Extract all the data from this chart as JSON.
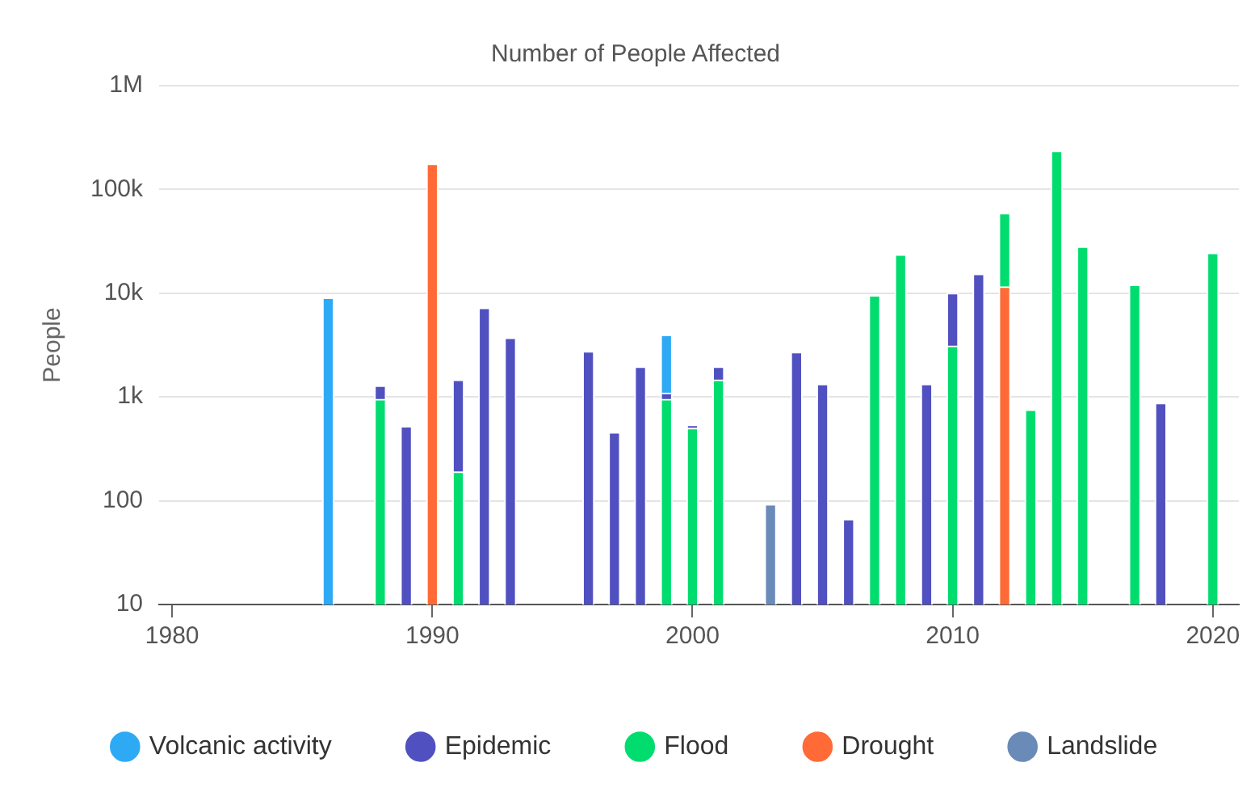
{
  "chart_data": {
    "type": "bar",
    "title": "Number of People Affected",
    "ylabel": "People",
    "stacked": true,
    "log": true,
    "grid": "y",
    "legend": "bottom",
    "x": [
      1986,
      1988,
      1989,
      1990,
      1991,
      1992,
      1993,
      1996,
      1997,
      1998,
      1999,
      2000,
      2001,
      2003,
      2004,
      2005,
      2006,
      2007,
      2008,
      2009,
      2010,
      2011,
      2012,
      2013,
      2014,
      2015,
      2017,
      2018,
      2020
    ],
    "xlim": [
      1979.5,
      2021
    ],
    "xticks": [
      1980,
      1990,
      2000,
      2010,
      2020
    ],
    "ylim": [
      10,
      1000000
    ],
    "yticks": [
      10,
      100,
      {
        "value": 1000,
        "label": "1k"
      },
      {
        "value": 10000,
        "label": "10k"
      },
      {
        "value": 100000,
        "label": "100k"
      },
      {
        "value": 1000000,
        "label": "1M"
      }
    ],
    "series": [
      {
        "name": "Landslide",
        "color": "#6a8ab8",
        "values": [
          null,
          null,
          null,
          null,
          null,
          null,
          null,
          null,
          null,
          null,
          null,
          null,
          null,
          92,
          null,
          null,
          null,
          null,
          null,
          null,
          null,
          null,
          null,
          null,
          null,
          null,
          null,
          null,
          null
        ]
      },
      {
        "name": "Drought",
        "color": "#ff6a36",
        "values": [
          null,
          null,
          null,
          176000,
          null,
          null,
          null,
          null,
          null,
          null,
          null,
          null,
          null,
          null,
          null,
          null,
          null,
          null,
          null,
          null,
          null,
          null,
          11500,
          null,
          null,
          null,
          null,
          null,
          null
        ]
      },
      {
        "name": "Flood",
        "color": "#00dd6e",
        "values": [
          null,
          950,
          null,
          null,
          190,
          null,
          null,
          null,
          null,
          null,
          950,
          500,
          1460,
          null,
          null,
          null,
          null,
          9500,
          23500,
          null,
          3100,
          null,
          47500,
          750,
          234000,
          28000,
          12000,
          null,
          24400
        ]
      },
      {
        "name": "Epidemic",
        "color": "#5050c0",
        "values": [
          null,
          330,
          520,
          null,
          1270,
          7200,
          3700,
          2750,
          455,
          1950,
          140,
          35,
          490,
          null,
          2700,
          1330,
          66,
          null,
          null,
          1330,
          6900,
          15300,
          null,
          null,
          null,
          null,
          null,
          870,
          null
        ]
      },
      {
        "name": "Volcanic activity",
        "color": "#2eaaf5",
        "values": [
          9000,
          null,
          null,
          null,
          null,
          null,
          null,
          null,
          null,
          null,
          2860,
          null,
          null,
          null,
          null,
          null,
          null,
          null,
          null,
          null,
          null,
          null,
          null,
          null,
          null,
          null,
          null,
          null,
          null
        ]
      }
    ]
  }
}
